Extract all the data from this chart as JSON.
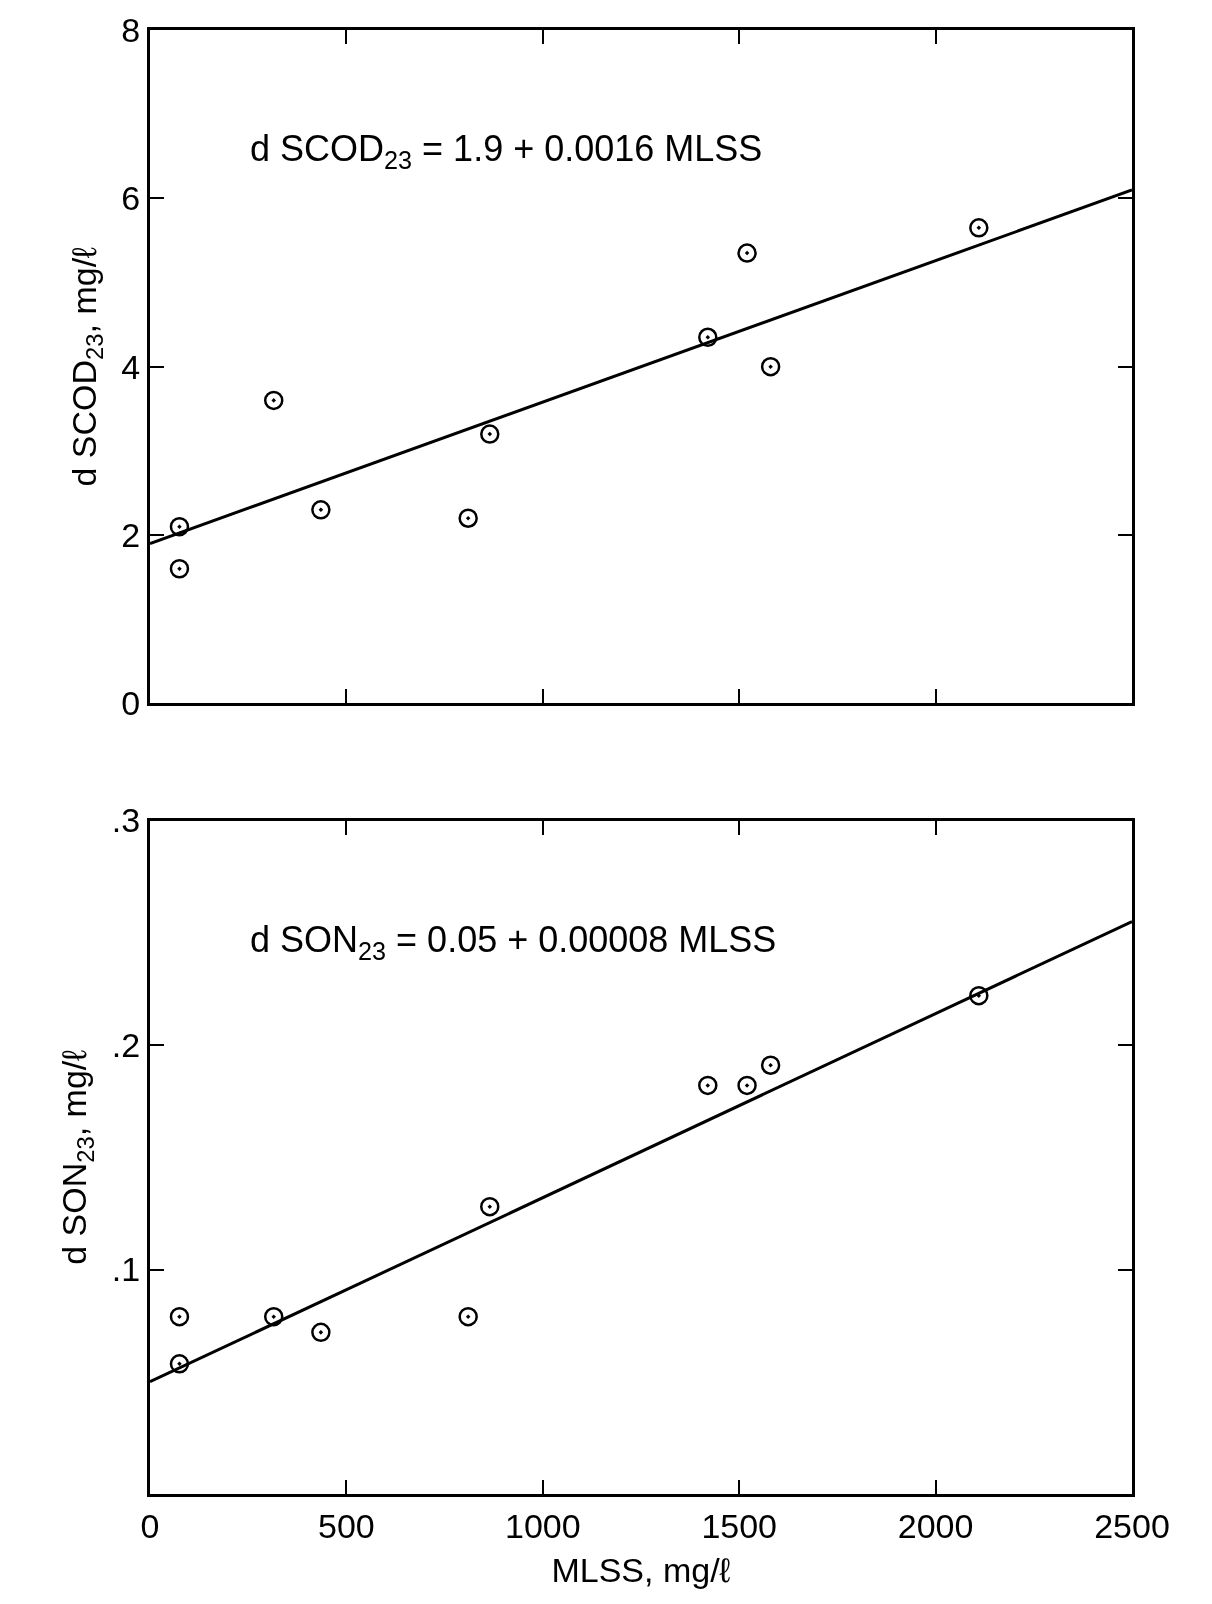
{
  "chart_data": [
    {
      "type": "scatter",
      "ylabel": "d SCOD$_{23}$, mg/ℓ",
      "annotations": [
        "d SCOD$_{23}$ = 1.9 + 0.0016 MLSS"
      ],
      "xlim": [
        0,
        2500
      ],
      "xticks": [
        0,
        500,
        1000,
        1500,
        2000,
        2500
      ],
      "ylim": [
        0,
        8
      ],
      "yticks": [
        0,
        2,
        4,
        6,
        8
      ],
      "tick_labels": "y",
      "marker": "circle",
      "series": [
        {
          "color": "#000000",
          "x": [
            75,
            75,
            315,
            435,
            810,
            865,
            1420,
            1520,
            1580,
            2110
          ],
          "values": [
            2.1,
            1.6,
            3.6,
            2.3,
            2.2,
            3.2,
            4.35,
            5.35,
            4.0,
            5.65
          ]
        },
        {
          "type": "line",
          "marker": "none",
          "color": "#000000",
          "x": [
            0,
            2500
          ],
          "values": [
            1.9,
            6.1
          ]
        }
      ]
    },
    {
      "type": "scatter",
      "xlabel": "MLSS, mg/ℓ",
      "ylabel": "d SON$_{23}$, mg/ℓ",
      "annotations": [
        "d SON$_{23}$ = 0.05 + 0.00008 MLSS"
      ],
      "xlim": [
        0,
        2500
      ],
      "xticks": [
        0,
        500,
        1000,
        1500,
        2000,
        2500
      ],
      "ylim": [
        0,
        0.3
      ],
      "yticks": [
        {
          "value": 0,
          "label": null
        },
        {
          "value": 0.1,
          "label": ".1"
        },
        {
          "value": 0.2,
          "label": ".2"
        },
        {
          "value": 0.3,
          "label": ".3"
        }
      ],
      "marker": "circle",
      "series": [
        {
          "color": "#000000",
          "x": [
            75,
            75,
            315,
            435,
            810,
            865,
            1420,
            1520,
            1580,
            2110
          ],
          "values": [
            0.079,
            0.058,
            0.079,
            0.072,
            0.079,
            0.128,
            0.182,
            0.182,
            0.191,
            0.222
          ]
        },
        {
          "type": "line",
          "marker": "none",
          "color": "#000000",
          "x": [
            0,
            2500
          ],
          "values": [
            0.05,
            0.255
          ]
        }
      ]
    }
  ]
}
